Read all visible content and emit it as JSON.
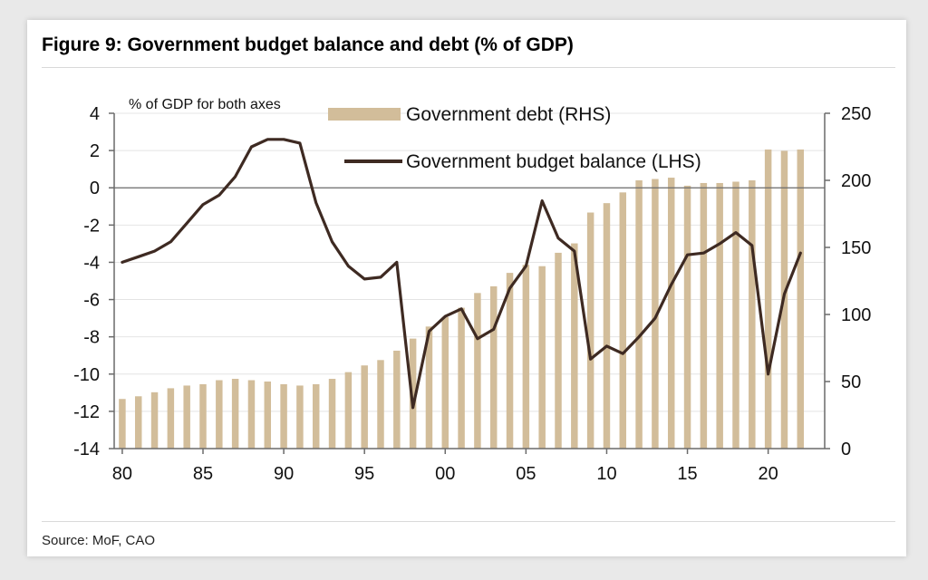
{
  "title": "Figure 9: Government budget balance and debt (% of GDP)",
  "source": "Source: MoF, CAO",
  "colors": {
    "bar": "#d2bd9a",
    "line": "#3e2a22",
    "axis": "#6a6a6a",
    "grid": "#e4e4e4",
    "zero_line": "#6a6a6a"
  },
  "chart_data": {
    "type": "bar+line",
    "title": "Figure 9: Government budget balance and debt (% of GDP)",
    "axis_note": "% of GDP for both axes",
    "x": [
      1980,
      1981,
      1982,
      1983,
      1984,
      1985,
      1986,
      1987,
      1988,
      1989,
      1990,
      1991,
      1992,
      1993,
      1994,
      1995,
      1996,
      1997,
      1998,
      1999,
      2000,
      2001,
      2002,
      2003,
      2004,
      2005,
      2006,
      2007,
      2008,
      2009,
      2010,
      2011,
      2012,
      2013,
      2014,
      2015,
      2016,
      2017,
      2018,
      2019,
      2020,
      2021,
      2022
    ],
    "x_ticks": [
      1980,
      1985,
      1990,
      1995,
      2000,
      2005,
      2010,
      2015,
      2020
    ],
    "x_tick_labels": [
      "80",
      "85",
      "90",
      "95",
      "00",
      "05",
      "10",
      "15",
      "20"
    ],
    "xlim": [
      1979.5,
      2023.5
    ],
    "left_axis": {
      "label": "Government budget balance (LHS)",
      "ylim": [
        -14,
        4
      ],
      "ticks": [
        4,
        2,
        0,
        -2,
        -4,
        -6,
        -8,
        -10,
        -12,
        -14
      ],
      "tick_labels": [
        "4",
        "2",
        "0",
        "-2",
        "-4",
        "-6",
        "-8",
        "-10",
        "-12",
        "-14"
      ]
    },
    "right_axis": {
      "label": "Government debt (RHS)",
      "ylim": [
        0,
        250
      ],
      "ticks": [
        250,
        200,
        150,
        100,
        50,
        0
      ],
      "tick_labels": [
        "250",
        "200",
        "150",
        "100",
        "50",
        "0"
      ]
    },
    "series": [
      {
        "name": "Government debt (RHS)",
        "type": "bar",
        "axis": "right",
        "values": [
          37,
          39,
          42,
          45,
          47,
          48,
          51,
          52,
          51,
          50,
          48,
          47,
          48,
          52,
          57,
          62,
          66,
          73,
          82,
          91,
          98,
          105,
          116,
          121,
          131,
          137,
          136,
          146,
          153,
          176,
          183,
          191,
          200,
          201,
          202,
          196,
          198,
          198,
          199,
          200,
          223,
          222,
          223
        ]
      },
      {
        "name": "Government budget balance (LHS)",
        "type": "line",
        "axis": "left",
        "values": [
          -4.0,
          -3.7,
          -3.4,
          -2.9,
          -1.9,
          -0.9,
          -0.4,
          0.6,
          2.2,
          2.6,
          2.6,
          2.4,
          -0.8,
          -2.9,
          -4.2,
          -4.9,
          -4.8,
          -4.0,
          -11.8,
          -7.7,
          -6.9,
          -6.5,
          -8.1,
          -7.6,
          -5.4,
          -4.2,
          -0.7,
          -2.7,
          -3.4,
          -9.2,
          -8.5,
          -8.9,
          -8.0,
          -7.0,
          -5.2,
          -3.6,
          -3.5,
          -3.0,
          -2.4,
          -3.1,
          -10.0,
          -5.7,
          -3.5
        ]
      }
    ],
    "legend": [
      "Government debt (RHS)",
      "Government budget balance (LHS)"
    ],
    "legend_position": "top-right"
  }
}
